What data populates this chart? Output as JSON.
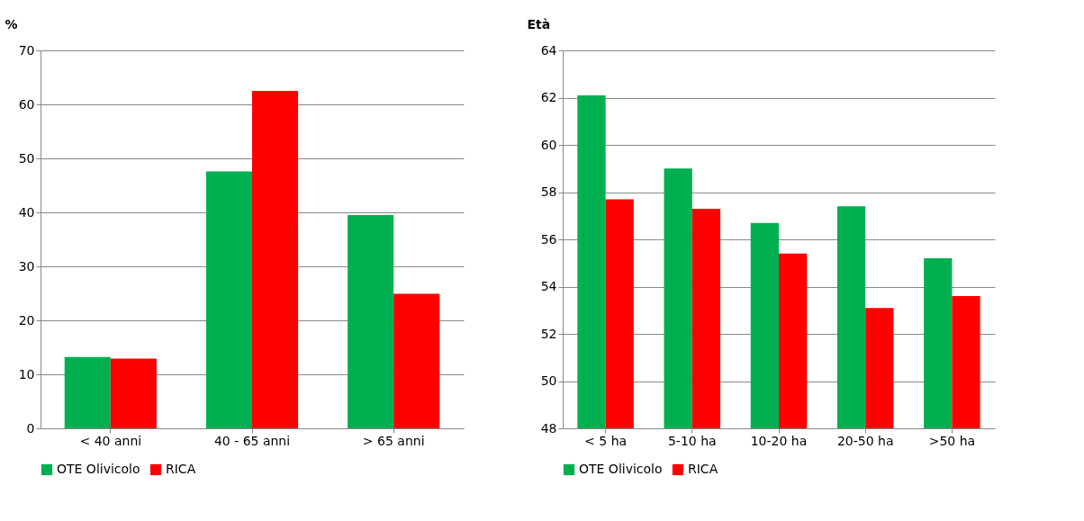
{
  "chart_data": [
    {
      "type": "bar",
      "ylabel": "%",
      "categories": [
        "< 40 anni",
        "40 - 65 anni",
        "> 65 anni"
      ],
      "ylim": [
        0,
        70
      ],
      "yticks": [
        0,
        10,
        20,
        30,
        40,
        50,
        60,
        70
      ],
      "grid": "y",
      "legend": "bottom",
      "series": [
        {
          "name": "OTE Olivicolo",
          "color": "#00b050",
          "values": [
            13.2,
            47.6,
            39.5
          ]
        },
        {
          "name": "RICA",
          "color": "#ff0000",
          "values": [
            12.9,
            62.5,
            24.9
          ]
        }
      ]
    },
    {
      "type": "bar",
      "ylabel": "Età",
      "categories": [
        "< 5 ha",
        "5-10 ha",
        "10-20 ha",
        "20-50 ha",
        ">50 ha"
      ],
      "ylim": [
        48,
        64
      ],
      "yticks": [
        48,
        50,
        52,
        54,
        56,
        58,
        60,
        62,
        64
      ],
      "grid": "y",
      "legend": "bottom",
      "series": [
        {
          "name": "OTE Olivicolo",
          "color": "#00b050",
          "values": [
            62.1,
            59.0,
            56.7,
            57.4,
            55.2
          ]
        },
        {
          "name": "RICA",
          "color": "#ff0000",
          "values": [
            57.7,
            57.3,
            55.4,
            53.1,
            53.6
          ]
        }
      ]
    }
  ]
}
